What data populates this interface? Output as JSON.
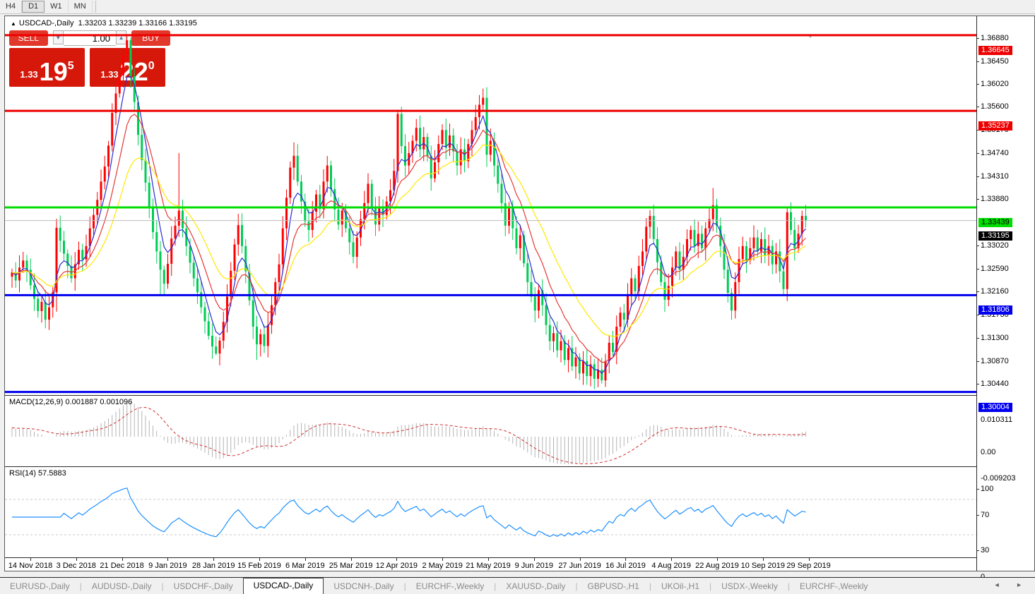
{
  "toolbar": {
    "timeframes": [
      {
        "label": "H4",
        "active": false
      },
      {
        "label": "D1",
        "active": true
      },
      {
        "label": "W1",
        "active": false
      },
      {
        "label": "MN",
        "active": false
      }
    ]
  },
  "chart": {
    "title_symbol": "USDCAD-,Daily",
    "title_ohlc": "1.33203 1.33239 1.33166 1.33195",
    "trade_panel": {
      "sell_label": "SELL",
      "buy_label": "BUY",
      "volume": "1.00",
      "sell_price": {
        "small": "1.33",
        "big": "19",
        "sup": "5"
      },
      "buy_price": {
        "small": "1.33",
        "big": "22",
        "sup": "0"
      }
    }
  },
  "chart_data": {
    "type": "candlestick",
    "symbol": "USDCAD-",
    "period": "Daily",
    "open0": 1.3215,
    "closes": [
      1.3223,
      1.3208,
      1.3232,
      1.3245,
      1.3228,
      1.3199,
      1.3174,
      1.3151,
      1.3168,
      1.3135,
      1.3158,
      1.3186,
      1.3306,
      1.3282,
      1.3258,
      1.3235,
      1.3212,
      1.3238,
      1.3265,
      1.3247,
      1.3272,
      1.3305,
      1.333,
      1.3358,
      1.3392,
      1.342,
      1.3459,
      1.352,
      1.3556,
      1.359,
      1.3628,
      1.3655,
      1.3588,
      1.354,
      1.3479,
      1.3432,
      1.339,
      1.3345,
      1.3298,
      1.3262,
      1.3228,
      1.3202,
      1.3239,
      1.3286,
      1.331,
      1.3338,
      1.3305,
      1.3272,
      1.3241,
      1.3212,
      1.3186,
      1.3158,
      1.3132,
      1.3105,
      1.3085,
      1.3072,
      1.3096,
      1.3131,
      1.3178,
      1.3226,
      1.3275,
      1.3311,
      1.3272,
      1.3225,
      1.3171,
      1.3122,
      1.3089,
      1.3108,
      1.3086,
      1.3125,
      1.3162,
      1.3205,
      1.3238,
      1.3305,
      1.3362,
      1.3418,
      1.344,
      1.3392,
      1.3355,
      1.3318,
      1.3302,
      1.3336,
      1.3368,
      1.3341,
      1.3392,
      1.3422,
      1.3378,
      1.334,
      1.3312,
      1.3338,
      1.3305,
      1.3279,
      1.3252,
      1.3288,
      1.3322,
      1.3352,
      1.3388,
      1.3345,
      1.3312,
      1.3342,
      1.333,
      1.3355,
      1.3376,
      1.3412,
      1.3518,
      1.3458,
      1.3422,
      1.3445,
      1.3468,
      1.3492,
      1.3452,
      1.3475,
      1.344,
      1.3398,
      1.3428,
      1.3462,
      1.3488,
      1.3455,
      1.3478,
      1.3448,
      1.3422,
      1.3452,
      1.343,
      1.3462,
      1.3488,
      1.3512,
      1.3535,
      1.3548,
      1.3442,
      1.3468,
      1.3422,
      1.3388,
      1.3352,
      1.331,
      1.3342,
      1.3305,
      1.3268,
      1.3292,
      1.324,
      1.3205,
      1.3178,
      1.3152,
      1.319,
      1.3162,
      1.3125,
      1.3095,
      1.311,
      1.3078,
      1.3095,
      1.306,
      1.3082,
      1.3048,
      1.3065,
      1.3035,
      1.3058,
      1.303,
      1.3052,
      1.3025,
      1.3042,
      1.3022,
      1.3058,
      1.3092,
      1.3075,
      1.3122,
      1.3148,
      1.3135,
      1.318,
      1.3212,
      1.3188,
      1.3235,
      1.3262,
      1.3308,
      1.3328,
      1.3285,
      1.3242,
      1.3205,
      1.3172,
      1.3198,
      1.3232,
      1.3262,
      1.3228,
      1.3252,
      1.3285,
      1.3302,
      1.3272,
      1.3295,
      1.3268,
      1.3305,
      1.3322,
      1.3348,
      1.331,
      1.3272,
      1.3228,
      1.3185,
      1.3152,
      1.3205,
      1.3248,
      1.3272,
      1.3245,
      1.3268,
      1.3288,
      1.3262,
      1.3285,
      1.3255,
      1.3272,
      1.3238,
      1.3262,
      1.3225,
      1.3192,
      1.3335,
      1.3302,
      1.3268,
      1.3295,
      1.3328,
      1.33195
    ],
    "extremes": {
      "12": {
        "l": 1.315
      },
      "31": {
        "h": 1.3664
      },
      "32": {
        "h": 1.366
      },
      "40": {
        "l": 1.3181
      },
      "45": {
        "h": 1.3445
      },
      "55": {
        "l": 1.3069
      },
      "66": {
        "l": 1.306
      },
      "76": {
        "h": 1.3465
      },
      "104": {
        "h": 1.3524
      },
      "127": {
        "h": 1.3565
      },
      "159": {
        "l": 1.3016
      },
      "189": {
        "h": 1.338
      },
      "194": {
        "l": 1.3135
      },
      "209": {
        "h": 1.3346
      }
    },
    "colors": {
      "up_candle": "#ff0000",
      "down_candle": "#00cc55",
      "ma_fast": "#2b2bd5",
      "ma_mid": "#e53935",
      "ma_slow": "#ffe800",
      "macd_bars": "#b4b4b4",
      "macd_signal": "#d32f2f",
      "rsi_line": "#1e90ff",
      "current_price_line": "#bbbbbb"
    },
    "hlines": [
      {
        "price": 1.36645,
        "color": "#ee0000",
        "badge_bg": "#ee0000",
        "badge_fg": "#ffffff",
        "label": "1.36645"
      },
      {
        "price": 1.35237,
        "color": "#ee0000",
        "badge_bg": "#ee0000",
        "badge_fg": "#ffffff",
        "label": "1.35237"
      },
      {
        "price": 1.33439,
        "color": "#00dd00",
        "badge_bg": "#00dd00",
        "badge_fg": "#000000",
        "label": "1.33439"
      },
      {
        "price": 1.31806,
        "color": "#0000ee",
        "badge_bg": "#0000ee",
        "badge_fg": "#ffffff",
        "label": "1.31806"
      },
      {
        "price": 1.30004,
        "color": "#0000ee",
        "badge_bg": "#0000ee",
        "badge_fg": "#ffffff",
        "label": "1.30004"
      }
    ],
    "current_price": {
      "value": 1.33195,
      "label": "1.33195",
      "badge_bg": "#000000",
      "badge_fg": "#ffffff"
    },
    "price_axis_ticks": [
      "1.36880",
      "1.36450",
      "1.36020",
      "1.35600",
      "1.35170",
      "1.34740",
      "1.34310",
      "1.33880",
      "1.33020",
      "1.32590",
      "1.32160",
      "1.31730",
      "1.31300",
      "1.30870",
      "1.30440"
    ],
    "macd": {
      "label": "MACD(12,26,9)",
      "values": "0.001887 0.001096",
      "axis": [
        "0.010311",
        "0.00",
        "-0.009203"
      ],
      "params": [
        12,
        26,
        9
      ]
    },
    "rsi": {
      "label": "RSI(14)",
      "value": "57.5883",
      "axis": [
        "100",
        "70",
        "30",
        "0"
      ],
      "levels": [
        70,
        30
      ],
      "period": 14
    },
    "dates": [
      "14 Nov 2018",
      "3 Dec 2018",
      "21 Dec 2018",
      "9 Jan 2019",
      "28 Jan 2019",
      "15 Feb 2019",
      "6 Mar 2019",
      "25 Mar 2019",
      "12 Apr 2019",
      "2 May 2019",
      "21 May 2019",
      "9 Jun 2019",
      "27 Jun 2019",
      "16 Jul 2019",
      "4 Aug 2019",
      "22 Aug 2019",
      "10 Sep 2019",
      "29 Sep 2019"
    ]
  },
  "tabs": {
    "active_index": 3,
    "items": [
      "EURUSD-,Daily",
      "AUDUSD-,Daily",
      "USDCHF-,Daily",
      "USDCAD-,Daily",
      "USDCNH-,Daily",
      "EURCHF-,Weekly",
      "XAUUSD-,Daily",
      "GBPUSD-,H1",
      "UKOil-,H1",
      "USDX-,Weekly",
      "EURCHF-,Weekly"
    ],
    "scroll_left": "◄",
    "scroll_right": "►"
  }
}
